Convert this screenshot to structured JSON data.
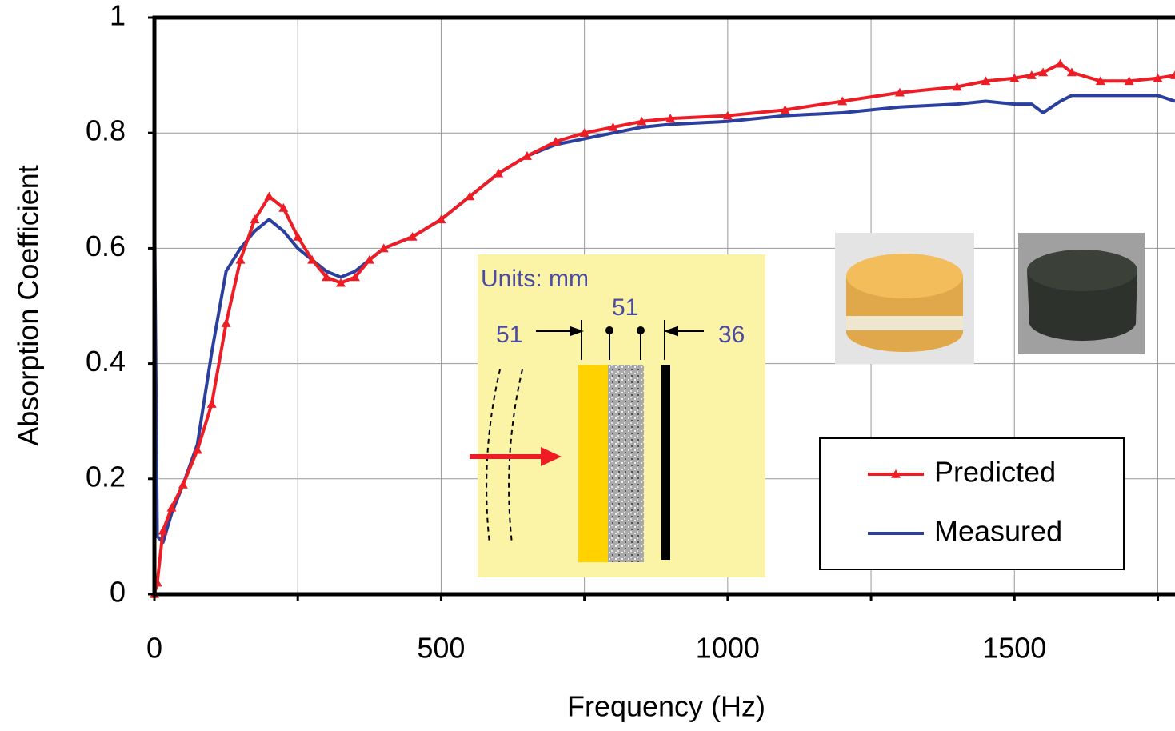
{
  "chart_data": {
    "type": "line",
    "xlabel": "Frequency (Hz)",
    "ylabel": "Absorption Coefficient",
    "xlim": [
      0,
      1780
    ],
    "ylim": [
      0,
      1
    ],
    "xticks": [
      0,
      500,
      1000,
      1500
    ],
    "xminor_grid": [
      250,
      750,
      1250,
      1750
    ],
    "yticks": [
      0,
      0.2,
      0.4,
      0.6,
      0.8,
      1
    ],
    "grid": true,
    "legend": "lower right",
    "x": [
      0,
      5,
      15,
      30,
      50,
      75,
      100,
      125,
      150,
      175,
      200,
      225,
      250,
      275,
      300,
      325,
      350,
      375,
      400,
      450,
      500,
      550,
      600,
      650,
      700,
      750,
      800,
      850,
      900,
      1000,
      1100,
      1200,
      1300,
      1400,
      1450,
      1500,
      1530,
      1550,
      1580,
      1600,
      1650,
      1700,
      1750,
      1780
    ],
    "series": [
      {
        "name": "Predicted",
        "color": "#ee1c24",
        "marker": "triangle",
        "values": [
          0.0,
          0.02,
          0.11,
          0.15,
          0.19,
          0.25,
          0.33,
          0.47,
          0.58,
          0.65,
          0.69,
          0.67,
          0.62,
          0.58,
          0.55,
          0.54,
          0.55,
          0.58,
          0.6,
          0.62,
          0.65,
          0.69,
          0.73,
          0.76,
          0.785,
          0.8,
          0.81,
          0.82,
          0.825,
          0.83,
          0.84,
          0.855,
          0.87,
          0.88,
          0.89,
          0.895,
          0.9,
          0.905,
          0.92,
          0.905,
          0.89,
          0.89,
          0.895,
          0.9
        ]
      },
      {
        "name": "Measured",
        "color": "#2b3f9e",
        "marker": "none",
        "values": [
          0.69,
          0.1,
          0.09,
          0.14,
          0.19,
          0.26,
          0.42,
          0.56,
          0.6,
          0.63,
          0.65,
          0.63,
          0.6,
          0.58,
          0.56,
          0.55,
          0.56,
          0.58,
          0.6,
          0.62,
          0.65,
          0.69,
          0.73,
          0.76,
          0.78,
          0.79,
          0.8,
          0.81,
          0.815,
          0.82,
          0.83,
          0.835,
          0.845,
          0.85,
          0.855,
          0.85,
          0.85,
          0.835,
          0.855,
          0.865,
          0.865,
          0.865,
          0.865,
          0.855
        ]
      }
    ],
    "annotations": [
      "Units: mm",
      "51",
      "51",
      "36"
    ]
  }
}
